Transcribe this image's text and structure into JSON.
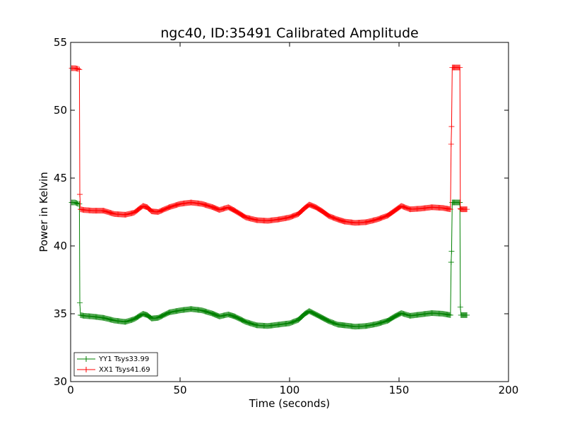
{
  "chart_data": {
    "type": "line",
    "title": "ngc40, ID:35491 Calibrated Amplitude",
    "xlabel": "Time (seconds)",
    "ylabel": "Power in Kelvin",
    "xlim": [
      0,
      200
    ],
    "ylim": [
      30,
      55
    ],
    "xticks": [
      0,
      50,
      100,
      150,
      200
    ],
    "yticks": [
      30,
      35,
      40,
      45,
      50,
      55
    ],
    "grid": false,
    "legend_position": "lower-left",
    "marker": "plus",
    "series": [
      {
        "name": "YY1 Tsys33.99",
        "color": "#008000",
        "points": [
          [
            0.5,
            43.2
          ],
          [
            2,
            43.2
          ],
          [
            3.5,
            43.1
          ],
          [
            4,
            43.1
          ],
          [
            4.2,
            35.8
          ],
          [
            4.5,
            34.9
          ],
          [
            6,
            34.85
          ],
          [
            10,
            34.8
          ],
          [
            15,
            34.7
          ],
          [
            20,
            34.5
          ],
          [
            25,
            34.4
          ],
          [
            29,
            34.6
          ],
          [
            33,
            35.0
          ],
          [
            35,
            34.9
          ],
          [
            37,
            34.65
          ],
          [
            40,
            34.7
          ],
          [
            45,
            35.1
          ],
          [
            50,
            35.25
          ],
          [
            55,
            35.35
          ],
          [
            60,
            35.25
          ],
          [
            65,
            35.0
          ],
          [
            68,
            34.8
          ],
          [
            72,
            34.95
          ],
          [
            75,
            34.8
          ],
          [
            80,
            34.4
          ],
          [
            85,
            34.15
          ],
          [
            90,
            34.1
          ],
          [
            95,
            34.2
          ],
          [
            100,
            34.3
          ],
          [
            104,
            34.55
          ],
          [
            107,
            35.0
          ],
          [
            109,
            35.2
          ],
          [
            112,
            34.95
          ],
          [
            115,
            34.7
          ],
          [
            118,
            34.45
          ],
          [
            122,
            34.2
          ],
          [
            125,
            34.15
          ],
          [
            130,
            34.05
          ],
          [
            135,
            34.1
          ],
          [
            140,
            34.25
          ],
          [
            145,
            34.5
          ],
          [
            148,
            34.8
          ],
          [
            151,
            35.05
          ],
          [
            155,
            34.85
          ],
          [
            160,
            34.95
          ],
          [
            165,
            35.05
          ],
          [
            170,
            35.0
          ],
          [
            173.5,
            34.9
          ],
          [
            173.8,
            38.8
          ],
          [
            174,
            39.6
          ],
          [
            174.3,
            43.2
          ],
          [
            177.8,
            43.2
          ],
          [
            178,
            35.5
          ],
          [
            178.3,
            34.9
          ],
          [
            181,
            34.9
          ]
        ]
      },
      {
        "name": "XX1 Tsys41.69",
        "color": "#ff0000",
        "points": [
          [
            0.5,
            53.1
          ],
          [
            2,
            53.1
          ],
          [
            3.5,
            53.05
          ],
          [
            4,
            53.0
          ],
          [
            4.2,
            43.8
          ],
          [
            4.5,
            42.7
          ],
          [
            6,
            42.65
          ],
          [
            10,
            42.6
          ],
          [
            15,
            42.6
          ],
          [
            20,
            42.35
          ],
          [
            25,
            42.3
          ],
          [
            29,
            42.45
          ],
          [
            33,
            42.95
          ],
          [
            35,
            42.85
          ],
          [
            37,
            42.55
          ],
          [
            40,
            42.5
          ],
          [
            45,
            42.85
          ],
          [
            50,
            43.1
          ],
          [
            55,
            43.2
          ],
          [
            60,
            43.1
          ],
          [
            65,
            42.85
          ],
          [
            68,
            42.65
          ],
          [
            72,
            42.85
          ],
          [
            75,
            42.6
          ],
          [
            80,
            42.1
          ],
          [
            85,
            41.9
          ],
          [
            90,
            41.85
          ],
          [
            95,
            41.95
          ],
          [
            100,
            42.1
          ],
          [
            104,
            42.35
          ],
          [
            107,
            42.8
          ],
          [
            109,
            43.05
          ],
          [
            112,
            42.85
          ],
          [
            115,
            42.55
          ],
          [
            118,
            42.2
          ],
          [
            122,
            41.95
          ],
          [
            125,
            41.8
          ],
          [
            130,
            41.7
          ],
          [
            135,
            41.75
          ],
          [
            140,
            41.95
          ],
          [
            145,
            42.25
          ],
          [
            148,
            42.6
          ],
          [
            151,
            42.95
          ],
          [
            155,
            42.7
          ],
          [
            160,
            42.75
          ],
          [
            165,
            42.85
          ],
          [
            170,
            42.8
          ],
          [
            173.5,
            42.7
          ],
          [
            173.8,
            47.5
          ],
          [
            174,
            48.8
          ],
          [
            174.3,
            53.15
          ],
          [
            177.8,
            53.15
          ],
          [
            178,
            42.75
          ],
          [
            178.3,
            42.7
          ],
          [
            181,
            42.7
          ]
        ]
      }
    ]
  }
}
